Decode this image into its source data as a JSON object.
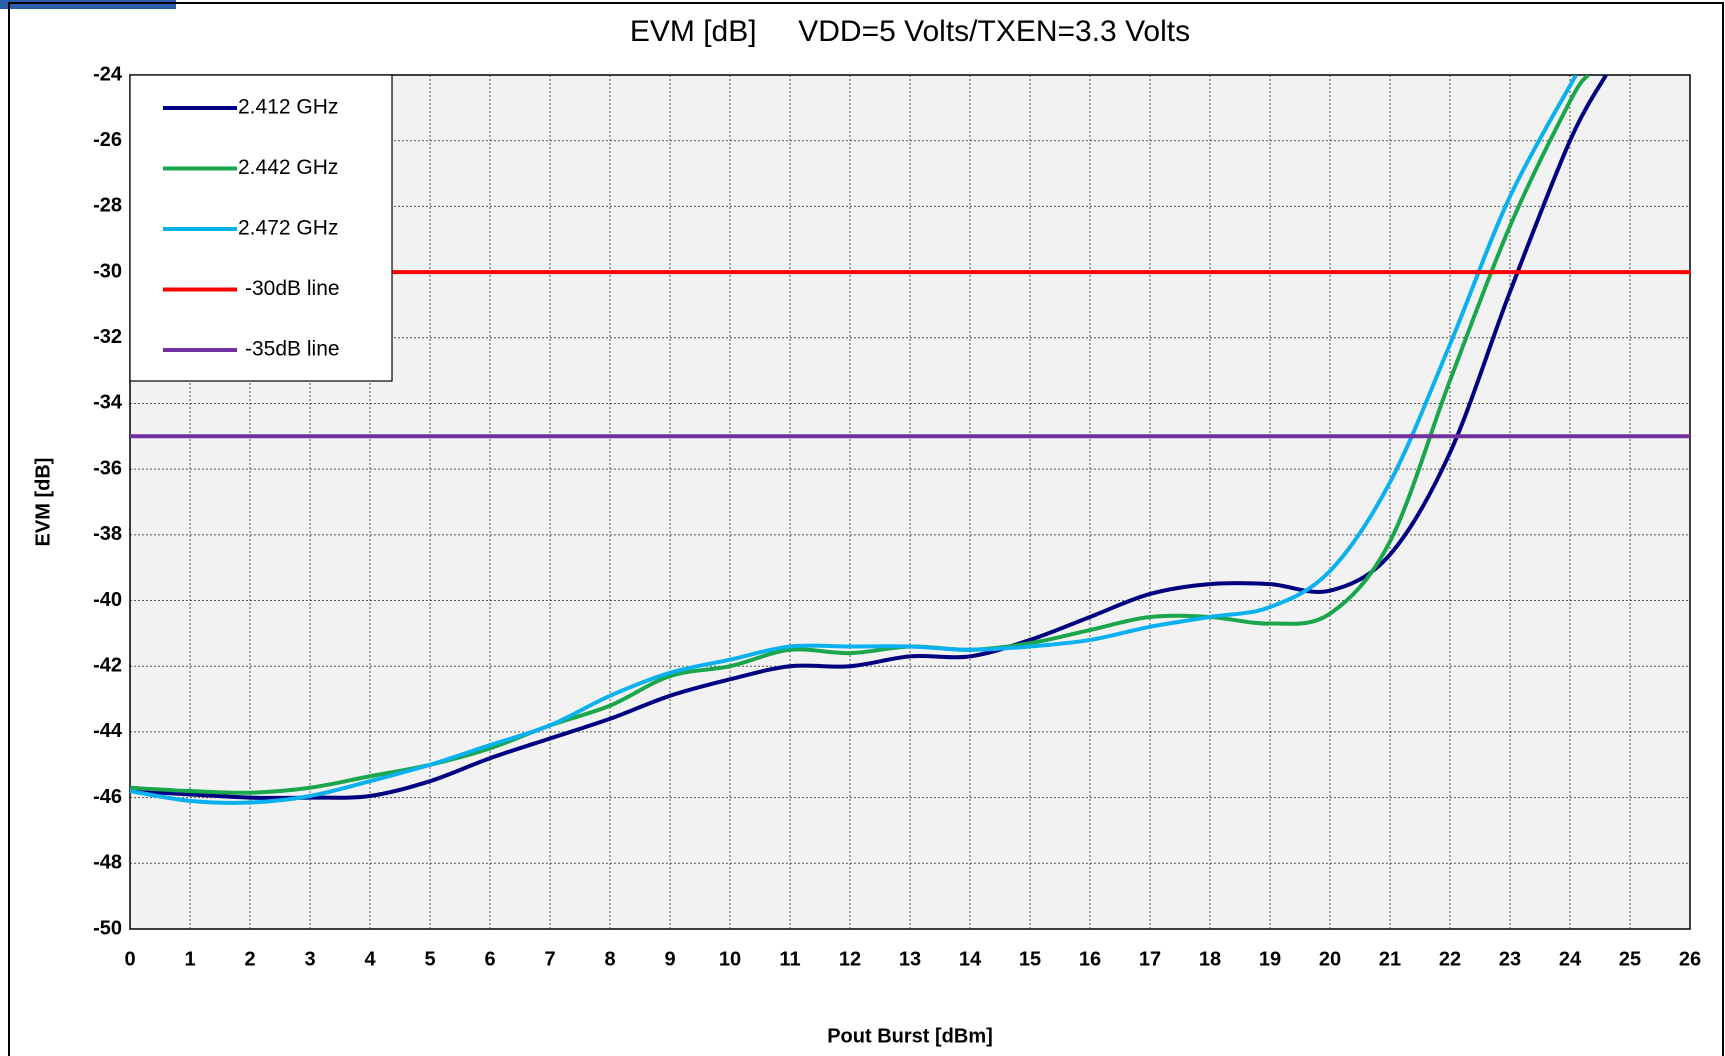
{
  "chart_data": {
    "type": "line",
    "title": "EVM [dB]     VDD=5 Volts/TXEN=3.3 Volts",
    "x_label": "Pout Burst [dBm]",
    "y_label": "EVM [dB]",
    "xlim": [
      0,
      26
    ],
    "ylim": [
      -50,
      -24
    ],
    "xticks": [
      0,
      1,
      2,
      3,
      4,
      5,
      6,
      7,
      8,
      9,
      10,
      11,
      12,
      13,
      14,
      15,
      16,
      17,
      18,
      19,
      20,
      21,
      22,
      23,
      24,
      25,
      26
    ],
    "yticks": [
      -50,
      -48,
      -46,
      -44,
      -42,
      -40,
      -38,
      -36,
      -34,
      -32,
      -30,
      -28,
      -26,
      -24
    ],
    "grid": true,
    "legend": "upper left",
    "series": [
      {
        "name": "2.412 GHz",
        "color": "#000080",
        "x": [
          0,
          1,
          2,
          3,
          4,
          5,
          6,
          7,
          8,
          9,
          10,
          11,
          12,
          13,
          14,
          15,
          16,
          17,
          18,
          19,
          20,
          21,
          22,
          23,
          24,
          24.6
        ],
        "values": [
          -45.8,
          -45.9,
          -46.0,
          -46.0,
          -45.95,
          -45.5,
          -44.8,
          -44.2,
          -43.6,
          -42.9,
          -42.4,
          -42.0,
          -42.0,
          -41.7,
          -41.7,
          -41.2,
          -40.5,
          -39.8,
          -39.5,
          -39.5,
          -39.7,
          -38.6,
          -35.5,
          -30.6,
          -26.0,
          -24.0
        ]
      },
      {
        "name": "2.442 GHz",
        "color": "#1aa64a",
        "x": [
          0,
          1,
          2,
          3,
          4,
          5,
          6,
          7,
          8,
          9,
          10,
          11,
          12,
          13,
          14,
          15,
          16,
          17,
          18,
          19,
          20,
          21,
          22,
          23,
          24,
          24.3
        ],
        "values": [
          -45.7,
          -45.8,
          -45.85,
          -45.7,
          -45.35,
          -45.0,
          -44.5,
          -43.8,
          -43.2,
          -42.3,
          -42.0,
          -41.5,
          -41.6,
          -41.4,
          -41.5,
          -41.3,
          -40.9,
          -40.5,
          -40.5,
          -40.7,
          -40.4,
          -38.2,
          -33.3,
          -28.6,
          -24.8,
          -24.0
        ]
      },
      {
        "name": "2.472 GHz",
        "color": "#0ab0ef",
        "x": [
          0,
          1,
          2,
          3,
          4,
          5,
          6,
          7,
          8,
          9,
          10,
          11,
          12,
          13,
          14,
          15,
          16,
          17,
          18,
          19,
          20,
          21,
          22,
          23,
          24.1
        ],
        "values": [
          -45.8,
          -46.1,
          -46.15,
          -45.95,
          -45.5,
          -45.0,
          -44.4,
          -43.8,
          -42.9,
          -42.2,
          -41.8,
          -41.4,
          -41.4,
          -41.4,
          -41.5,
          -41.4,
          -41.2,
          -40.8,
          -40.5,
          -40.2,
          -39.1,
          -36.4,
          -32.2,
          -27.7,
          -24.0
        ]
      },
      {
        "name": "-30dB line",
        "color": "#ff0000",
        "x": [
          0,
          26
        ],
        "values": [
          -30,
          -30
        ]
      },
      {
        "name": "-35dB line",
        "color": "#7030a0",
        "x": [
          0,
          26
        ],
        "values": [
          -35,
          -35
        ]
      }
    ]
  }
}
